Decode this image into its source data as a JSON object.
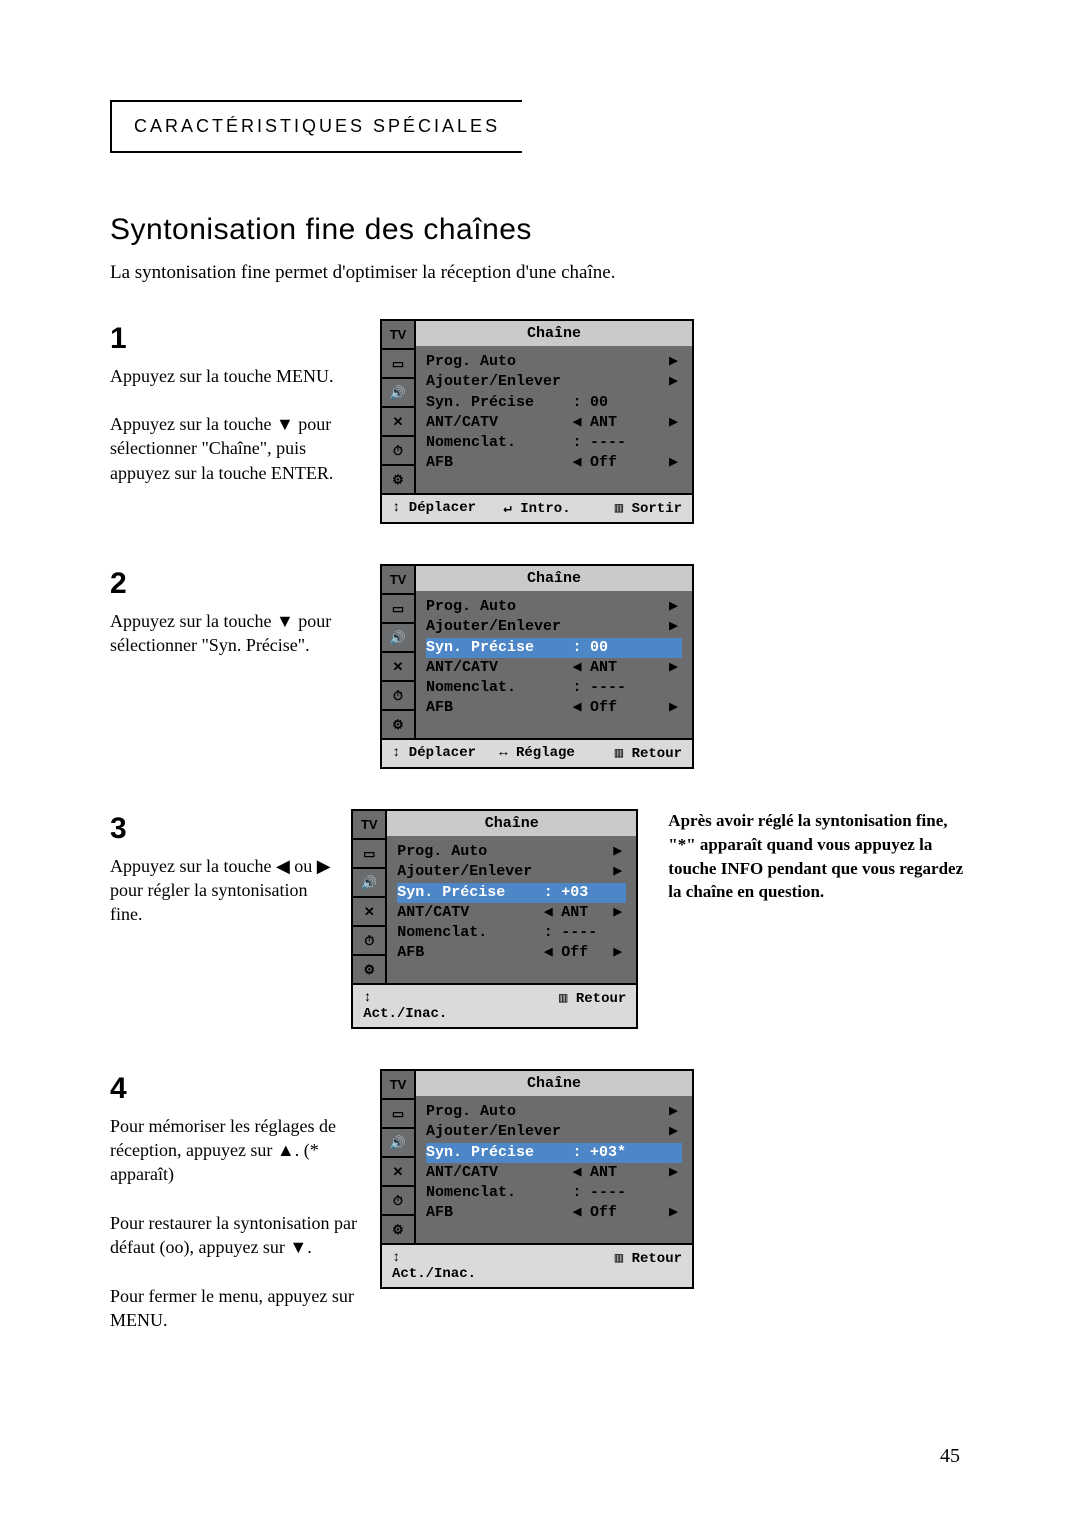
{
  "page": {
    "section_header": "CARACTÉRISTIQUES SPÉCIALES",
    "title": "Syntonisation fine des chaînes",
    "subtitle": "La syntonisation fine permet d'optimiser la réception d'une chaîne.",
    "page_number": "45"
  },
  "steps": [
    {
      "num": "1",
      "lines": [
        "Appuyez sur la touche MENU.",
        "",
        "Appuyez sur la touche ▼ pour sélectionner \"Chaîne\", puis appuyez sur la touche ENTER."
      ]
    },
    {
      "num": "2",
      "lines": [
        "Appuyez sur la touche ▼ pour sélectionner \"Syn. Précise\"."
      ]
    },
    {
      "num": "3",
      "lines": [
        "Appuyez sur la touche ◀ ou ▶ pour régler la syntonisation fine."
      ]
    },
    {
      "num": "4",
      "lines": [
        "Pour mémoriser les réglages de réception, appuyez sur ▲. (* apparaît)",
        "",
        "Pour restaurer la syntonisation par défaut (oo), appuyez sur ▼.",
        "",
        "Pour fermer le menu, appuyez sur MENU."
      ]
    }
  ],
  "side_note": "Après avoir réglé la syntonisation fine, \"*\" apparaît quand vous appuyez la touche INFO pendant que vous regardez la chaîne en question.",
  "osd_common": {
    "title": "Chaîne",
    "sidebar_icons": [
      "TV",
      "▭",
      "🔊",
      "✕",
      "⏱",
      "⚙"
    ],
    "rows_labels": [
      "Prog. Auto",
      "Ajouter/Enlever",
      "Syn. Précise",
      "ANT/CATV",
      "Nomenclat.",
      "AFB"
    ]
  },
  "osd": [
    {
      "highlight_index": -1,
      "values": {
        "syn": "00",
        "syn_suffix": "",
        "ant": "ANT",
        "afb": "Off"
      },
      "footer": {
        "left": "↕ Déplacer",
        "center": "↵ Intro.",
        "right": "▥ Sortir"
      }
    },
    {
      "highlight_index": 2,
      "values": {
        "syn": "00",
        "syn_suffix": "",
        "ant": "ANT",
        "afb": "Off"
      },
      "footer": {
        "left": "↕ Déplacer",
        "center": "↔ Réglage",
        "right": "▥ Retour"
      }
    },
    {
      "highlight_index": 2,
      "values": {
        "syn": "+03",
        "syn_suffix": "",
        "ant": "ANT",
        "afb": "Off"
      },
      "footer": {
        "left": "↕ Act./Inac.",
        "center": "",
        "right": "▥ Retour"
      }
    },
    {
      "highlight_index": 2,
      "values": {
        "syn": "+03",
        "syn_suffix": "*",
        "ant": "ANT",
        "afb": "Off"
      },
      "footer": {
        "left": "↕ Act./Inac.",
        "center": "",
        "right": "▥ Retour"
      }
    }
  ],
  "colors": {
    "osd_bg": "#6a6c6e",
    "osd_title_bg": "#c9cacc",
    "osd_footer_bg": "#d9dadb",
    "osd_highlight_bg": "#4d87c7",
    "osd_highlight_fg": "#ffffff"
  }
}
